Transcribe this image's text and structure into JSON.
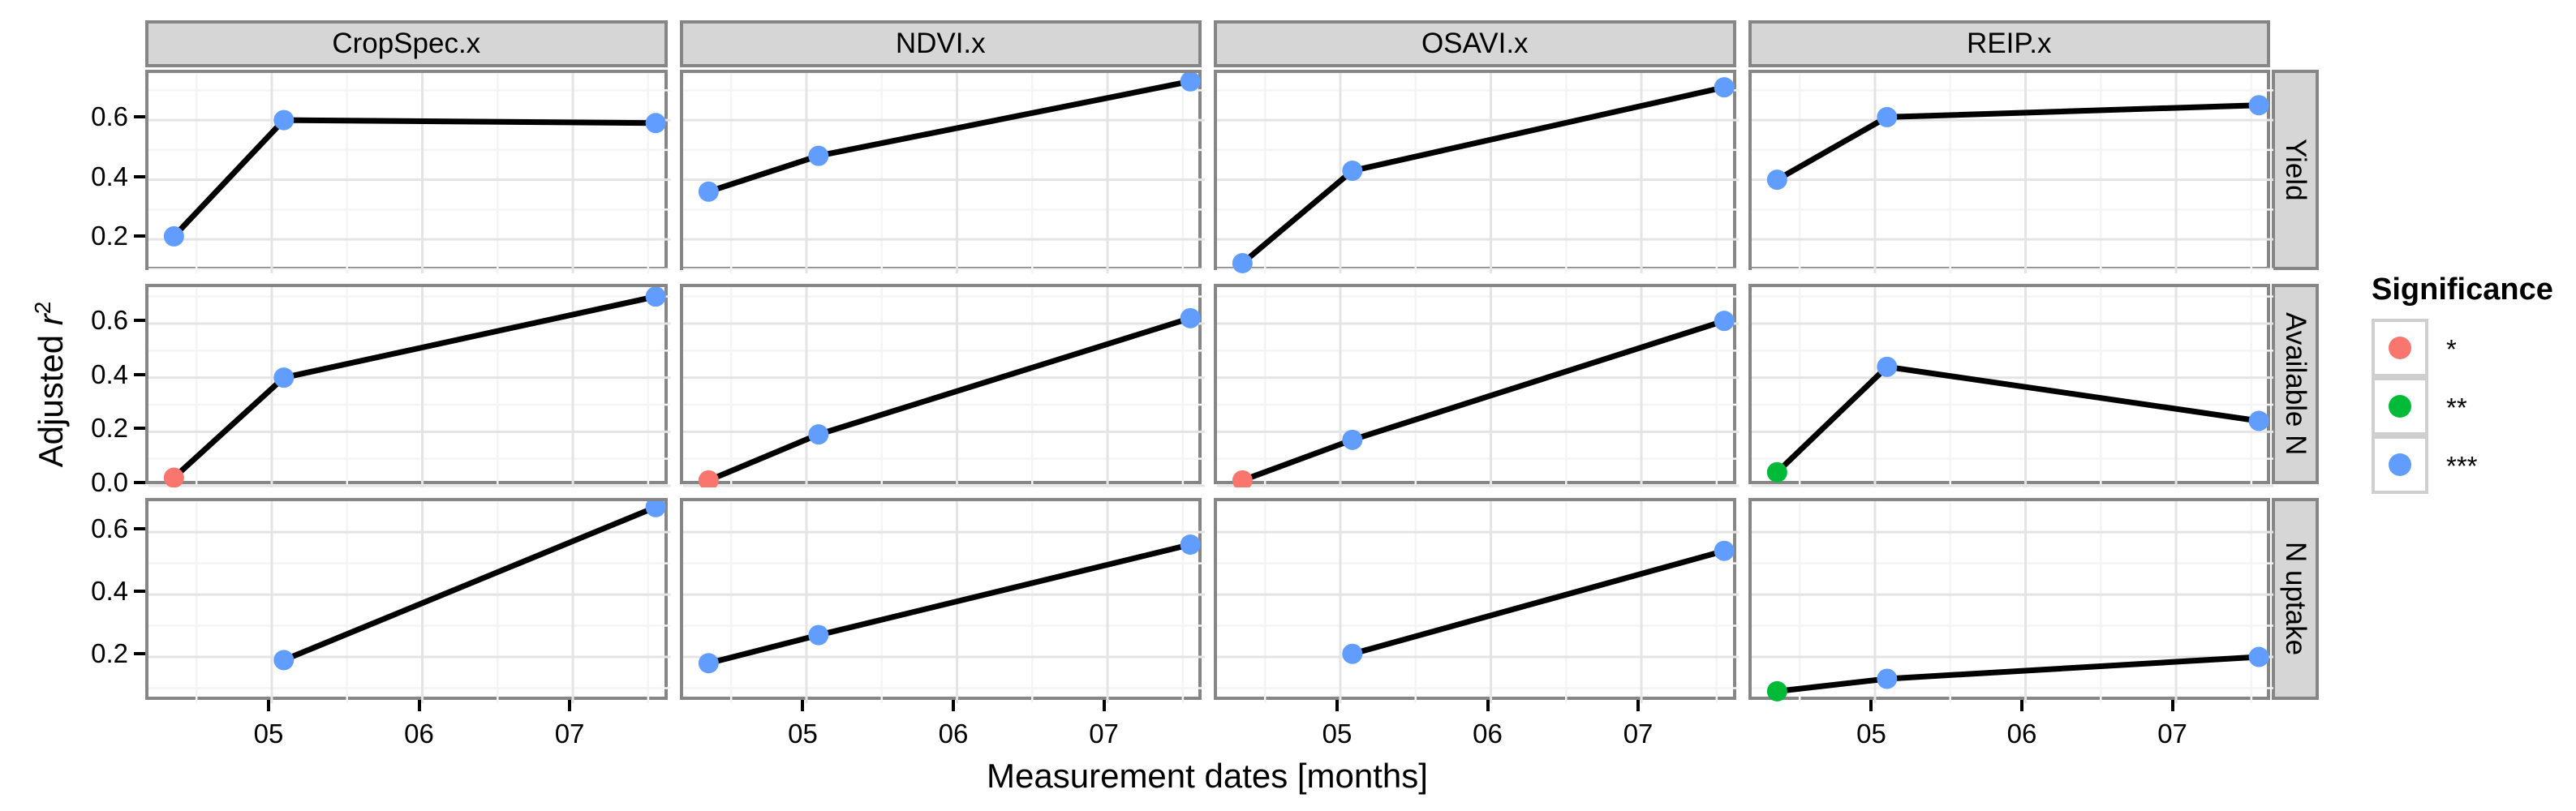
{
  "figure": {
    "y_axis_title": {
      "prefix": "Adjusted ",
      "symbol": "r",
      "exponent": "2"
    },
    "x_axis_title": "Measurement dates [months]",
    "legend": {
      "title": "Significance",
      "items": [
        {
          "label": "*",
          "color": "#F8766D",
          "name": "significance-star"
        },
        {
          "label": "**",
          "color": "#00BA38",
          "name": "significance-double-star"
        },
        {
          "label": "***",
          "color": "#619CFF",
          "name": "significance-triple-star"
        }
      ]
    }
  },
  "chart_data": {
    "type": "line",
    "title": "",
    "xlabel": "Measurement dates [months]",
    "ylabel": "Adjusted r2",
    "facet_columns": [
      "CropSpec.x",
      "NDVI.x",
      "OSAVI.x",
      "REIP.x"
    ],
    "facet_rows": [
      "Yield",
      "Available N",
      "N uptake"
    ],
    "x": {
      "lim": [
        4.181,
        7.649
      ],
      "ticks": [
        {
          "value": 5,
          "label": "05"
        },
        {
          "value": 6,
          "label": "06"
        },
        {
          "value": 7,
          "label": "07"
        }
      ],
      "minor": [
        4.5,
        5.5,
        6.5,
        7.5
      ]
    },
    "rows": [
      {
        "name": "Yield",
        "ylim": [
          0.086,
          0.758
        ],
        "yticks": [
          {
            "value": 0.2,
            "label": "0.2"
          },
          {
            "value": 0.4,
            "label": "0.4"
          },
          {
            "value": 0.6,
            "label": "0.6"
          }
        ],
        "minor": [
          0.1,
          0.3,
          0.5,
          0.7
        ]
      },
      {
        "name": "Available N",
        "ylim": [
          -0.006,
          0.735
        ],
        "yticks": [
          {
            "value": 0.0,
            "label": "0.0"
          },
          {
            "value": 0.2,
            "label": "0.2"
          },
          {
            "value": 0.4,
            "label": "0.4"
          },
          {
            "value": 0.6,
            "label": "0.6"
          }
        ],
        "minor": [
          0.1,
          0.3,
          0.5,
          0.7
        ]
      },
      {
        "name": "N uptake",
        "ylim": [
          0.052,
          0.699
        ],
        "yticks": [
          {
            "value": 0.2,
            "label": "0.2"
          },
          {
            "value": 0.4,
            "label": "0.4"
          },
          {
            "value": 0.6,
            "label": "0.6"
          }
        ],
        "minor": [
          0.1,
          0.3,
          0.5
        ]
      }
    ],
    "significance_colors": {
      "*": "#F8766D",
      "**": "#00BA38",
      "***": "#619CFF"
    },
    "line_color": "#000000",
    "series": [
      {
        "row": "Yield",
        "col": "CropSpec.x",
        "points": [
          {
            "x": 4.35,
            "y": 0.21,
            "sig": "***"
          },
          {
            "x": 5.08,
            "y": 0.6,
            "sig": "***"
          },
          {
            "x": 7.55,
            "y": 0.59,
            "sig": "***"
          }
        ]
      },
      {
        "row": "Yield",
        "col": "NDVI.x",
        "points": [
          {
            "x": 4.35,
            "y": 0.36,
            "sig": "***"
          },
          {
            "x": 5.08,
            "y": 0.48,
            "sig": "***"
          },
          {
            "x": 7.55,
            "y": 0.73,
            "sig": "***"
          }
        ]
      },
      {
        "row": "Yield",
        "col": "OSAVI.x",
        "points": [
          {
            "x": 4.35,
            "y": 0.12,
            "sig": "***"
          },
          {
            "x": 5.08,
            "y": 0.43,
            "sig": "***"
          },
          {
            "x": 7.55,
            "y": 0.71,
            "sig": "***"
          }
        ]
      },
      {
        "row": "Yield",
        "col": "REIP.x",
        "points": [
          {
            "x": 4.35,
            "y": 0.4,
            "sig": "***"
          },
          {
            "x": 5.08,
            "y": 0.61,
            "sig": "***"
          },
          {
            "x": 7.55,
            "y": 0.65,
            "sig": "***"
          }
        ]
      },
      {
        "row": "Available N",
        "col": "CropSpec.x",
        "points": [
          {
            "x": 4.35,
            "y": 0.03,
            "sig": "*"
          },
          {
            "x": 5.08,
            "y": 0.4,
            "sig": "***"
          },
          {
            "x": 7.55,
            "y": 0.7,
            "sig": "***"
          }
        ]
      },
      {
        "row": "Available N",
        "col": "NDVI.x",
        "points": [
          {
            "x": 4.35,
            "y": 0.02,
            "sig": "*"
          },
          {
            "x": 5.08,
            "y": 0.19,
            "sig": "***"
          },
          {
            "x": 7.55,
            "y": 0.62,
            "sig": "***"
          }
        ]
      },
      {
        "row": "Available N",
        "col": "OSAVI.x",
        "points": [
          {
            "x": 4.35,
            "y": 0.02,
            "sig": "*"
          },
          {
            "x": 5.08,
            "y": 0.17,
            "sig": "***"
          },
          {
            "x": 7.55,
            "y": 0.61,
            "sig": "***"
          }
        ]
      },
      {
        "row": "Available N",
        "col": "REIP.x",
        "points": [
          {
            "x": 4.35,
            "y": 0.05,
            "sig": "**"
          },
          {
            "x": 5.08,
            "y": 0.44,
            "sig": "***"
          },
          {
            "x": 7.55,
            "y": 0.24,
            "sig": "***"
          }
        ]
      },
      {
        "row": "N uptake",
        "col": "CropSpec.x",
        "points": [
          {
            "x": 5.08,
            "y": 0.19,
            "sig": "***"
          },
          {
            "x": 7.55,
            "y": 0.68,
            "sig": "***"
          }
        ]
      },
      {
        "row": "N uptake",
        "col": "NDVI.x",
        "points": [
          {
            "x": 4.35,
            "y": 0.18,
            "sig": "***"
          },
          {
            "x": 5.08,
            "y": 0.27,
            "sig": "***"
          },
          {
            "x": 7.55,
            "y": 0.56,
            "sig": "***"
          }
        ]
      },
      {
        "row": "N uptake",
        "col": "OSAVI.x",
        "points": [
          {
            "x": 5.08,
            "y": 0.21,
            "sig": "***"
          },
          {
            "x": 7.55,
            "y": 0.54,
            "sig": "***"
          }
        ]
      },
      {
        "row": "N uptake",
        "col": "REIP.x",
        "points": [
          {
            "x": 4.35,
            "y": 0.09,
            "sig": "**"
          },
          {
            "x": 5.08,
            "y": 0.13,
            "sig": "***"
          },
          {
            "x": 7.55,
            "y": 0.2,
            "sig": "***"
          }
        ]
      }
    ],
    "style": {
      "grid_major": "#e4e4e4",
      "grid_minor": "#f4f4f4",
      "panel_border": "#868686",
      "strip_fill": "#d6d6d6",
      "legend_key_border": "#cfcfcf"
    },
    "legend_position": "right",
    "grid": true
  }
}
